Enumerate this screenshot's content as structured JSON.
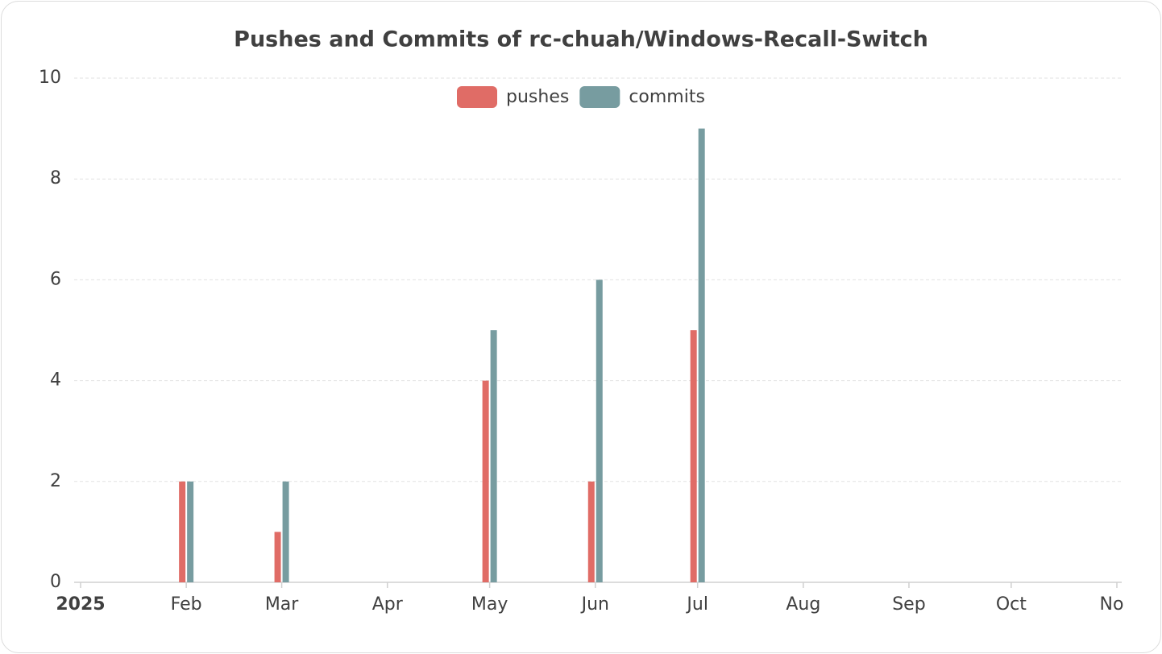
{
  "chart_data": {
    "type": "bar",
    "title": "Pushes and Commits of rc-chuah/Windows-Recall-Switch",
    "x": [
      "2025-02",
      "2025-03",
      "2025-05",
      "2025-06",
      "2025-07"
    ],
    "series": [
      {
        "name": "pushes",
        "color": "#e06c66",
        "values": [
          2,
          1,
          4,
          2,
          5
        ]
      },
      {
        "name": "commits",
        "color": "#779ca0",
        "values": [
          2,
          2,
          5,
          6,
          9
        ]
      }
    ],
    "xlim": [
      "2025-01",
      "2025-11"
    ],
    "xticks": [
      {
        "value": "2025-01",
        "label": "2025"
      },
      {
        "value": "2025-02",
        "label": "Feb"
      },
      {
        "value": "2025-03",
        "label": "Mar"
      },
      {
        "value": "2025-04",
        "label": "Apr"
      },
      {
        "value": "2025-05",
        "label": "May"
      },
      {
        "value": "2025-06",
        "label": "Jun"
      },
      {
        "value": "2025-07",
        "label": "Jul"
      },
      {
        "value": "2025-08",
        "label": "Aug"
      },
      {
        "value": "2025-09",
        "label": "Sep"
      },
      {
        "value": "2025-10",
        "label": "Oct"
      },
      {
        "value": "2025-11",
        "label": "Nov"
      }
    ],
    "ylim": [
      0,
      10
    ],
    "yticks": [
      0,
      2,
      4,
      6,
      8,
      10
    ],
    "grid": true
  }
}
